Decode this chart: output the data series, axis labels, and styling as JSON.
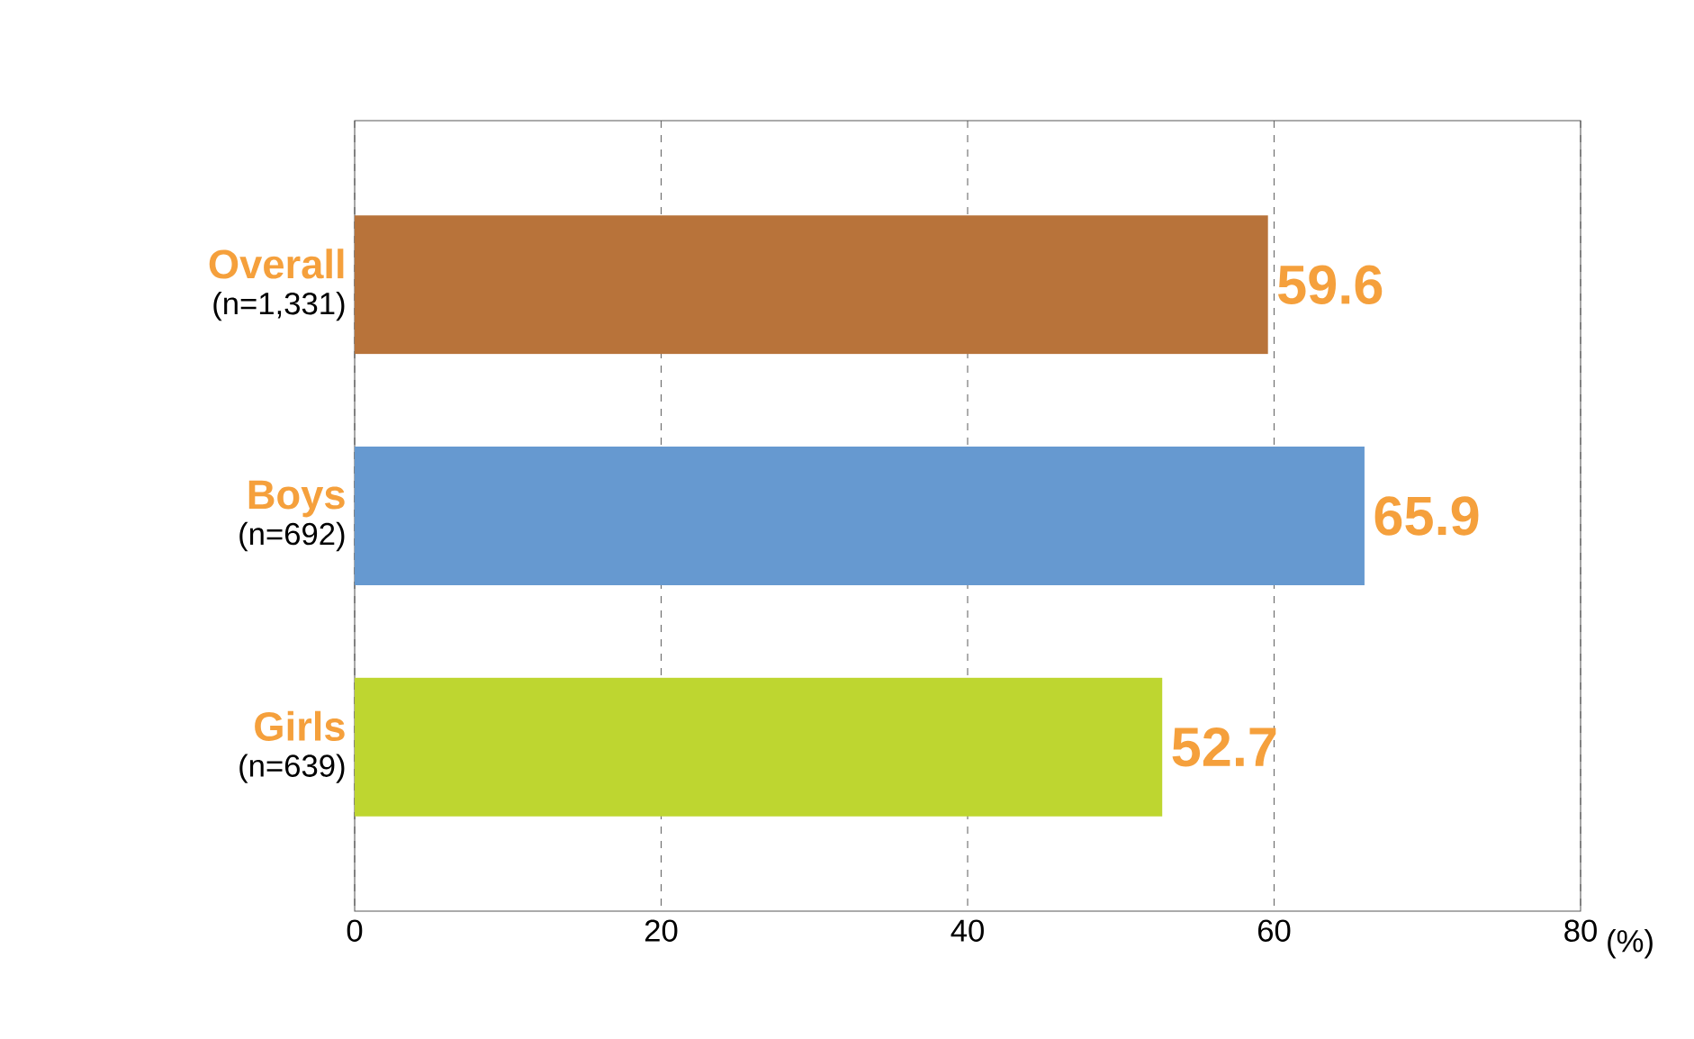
{
  "chart_data": {
    "type": "bar",
    "orientation": "horizontal",
    "categories": [
      "Overall",
      "Boys",
      "Girls"
    ],
    "annotations": [
      "(n=1,331)",
      "(n=692)",
      "(n=639)"
    ],
    "values": [
      59.6,
      65.9,
      52.7
    ],
    "colors": [
      "#b8733a",
      "#6699d0",
      "#bed630"
    ],
    "xlabel": "(%)",
    "xlim": [
      0,
      80
    ],
    "xticks": [
      0,
      20,
      40,
      60,
      80
    ],
    "grid": "x",
    "data_labels": true
  }
}
